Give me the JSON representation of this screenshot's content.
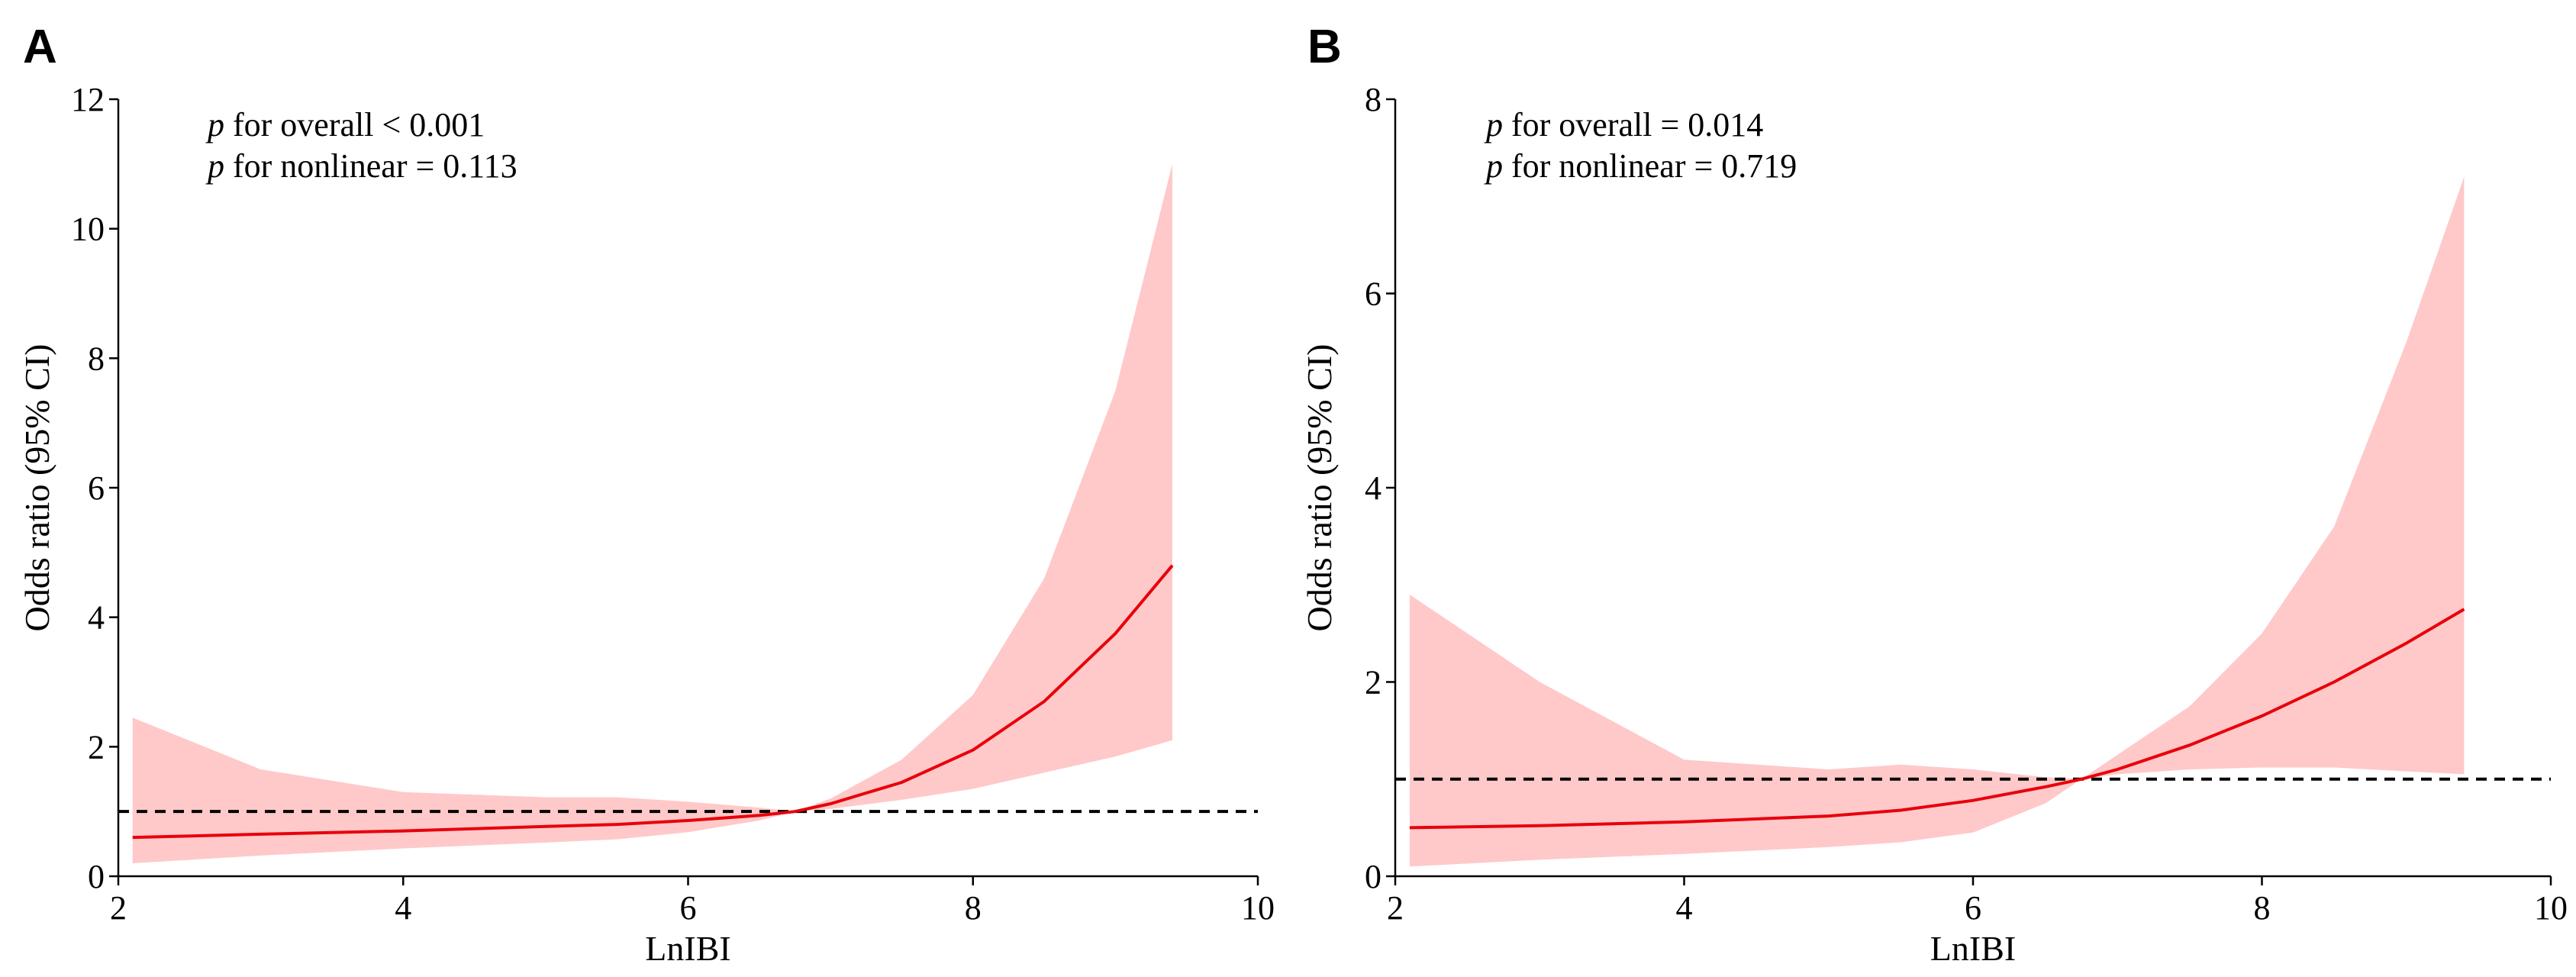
{
  "figure": {
    "panels": [
      "A",
      "B"
    ]
  },
  "chart_data": [
    {
      "type": "line",
      "panel": "A",
      "xlabel": "LnIBI",
      "ylabel": "Odds ratio (95% CI)",
      "xlim": [
        2,
        10
      ],
      "ylim": [
        0,
        12
      ],
      "xticks": [
        2,
        4,
        6,
        8,
        10
      ],
      "yticks": [
        0,
        2,
        4,
        6,
        8,
        10,
        12
      ],
      "annotations": [
        {
          "p": "p",
          "text": " for overall < 0.001"
        },
        {
          "p": "p",
          "text": " for nonlinear = 0.113"
        }
      ],
      "reference_line": {
        "y": 1,
        "style": "dashed",
        "color": "#000000"
      },
      "line_color": "#e8000b",
      "band_color": "#ffc9c9",
      "x": [
        2.1,
        3.0,
        4.0,
        5.0,
        5.5,
        6.0,
        6.5,
        6.75,
        7.0,
        7.5,
        8.0,
        8.5,
        9.0,
        9.4
      ],
      "or": [
        0.6,
        0.65,
        0.7,
        0.77,
        0.8,
        0.86,
        0.94,
        1.0,
        1.12,
        1.45,
        1.95,
        2.7,
        3.75,
        4.8
      ],
      "lower": [
        0.2,
        0.32,
        0.43,
        0.52,
        0.57,
        0.68,
        0.86,
        1.0,
        1.04,
        1.18,
        1.35,
        1.6,
        1.85,
        2.1
      ],
      "upper": [
        2.45,
        1.65,
        1.3,
        1.22,
        1.22,
        1.15,
        1.06,
        1.0,
        1.2,
        1.8,
        2.8,
        4.6,
        7.5,
        11.0
      ]
    },
    {
      "type": "line",
      "panel": "B",
      "xlabel": "LnIBI",
      "ylabel": "Odds ratio (95% CI)",
      "xlim": [
        2,
        10
      ],
      "ylim": [
        0,
        8
      ],
      "xticks": [
        2,
        4,
        6,
        8,
        10
      ],
      "yticks": [
        0,
        2,
        4,
        6,
        8
      ],
      "annotations": [
        {
          "p": "p",
          "text": " for overall = 0.014"
        },
        {
          "p": "p",
          "text": " for nonlinear = 0.719"
        }
      ],
      "reference_line": {
        "y": 1,
        "style": "dashed",
        "color": "#000000"
      },
      "line_color": "#e8000b",
      "band_color": "#ffc9c9",
      "x": [
        2.1,
        3.0,
        4.0,
        5.0,
        5.5,
        6.0,
        6.5,
        6.75,
        7.0,
        7.5,
        8.0,
        8.5,
        9.0,
        9.4
      ],
      "or": [
        0.5,
        0.52,
        0.56,
        0.62,
        0.68,
        0.78,
        0.92,
        1.0,
        1.1,
        1.35,
        1.65,
        2.0,
        2.4,
        2.75
      ],
      "lower": [
        0.1,
        0.17,
        0.23,
        0.3,
        0.35,
        0.45,
        0.75,
        1.0,
        1.05,
        1.1,
        1.12,
        1.12,
        1.08,
        1.05
      ],
      "upper": [
        2.9,
        2.0,
        1.2,
        1.1,
        1.15,
        1.1,
        1.02,
        1.0,
        1.25,
        1.75,
        2.5,
        3.6,
        5.5,
        7.2
      ]
    }
  ]
}
